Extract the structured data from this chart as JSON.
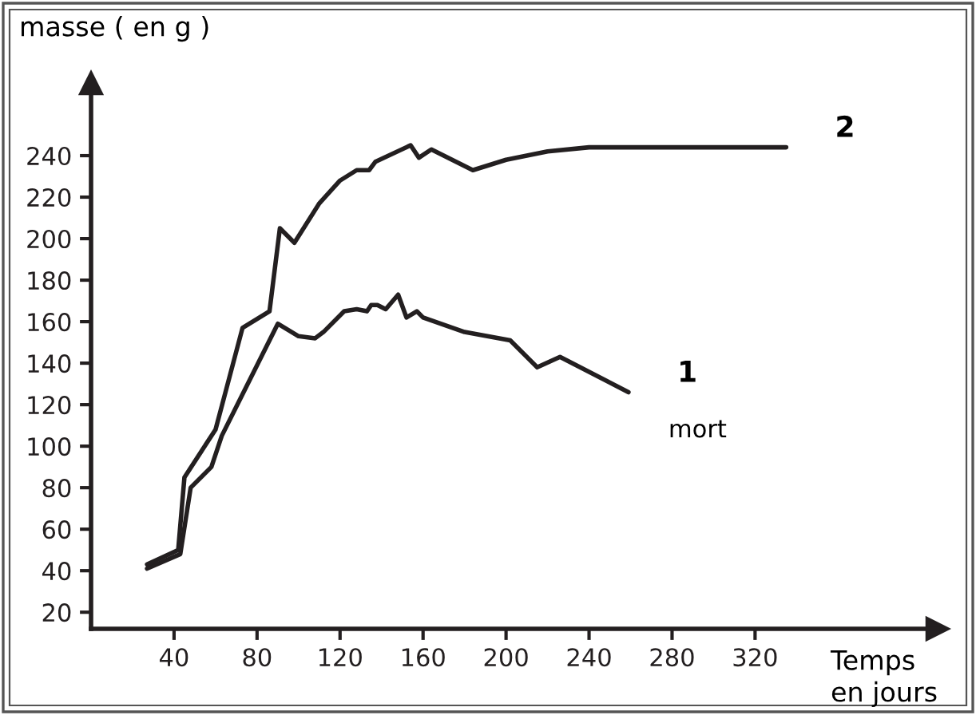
{
  "chart_data": {
    "type": "line",
    "ylabel": "masse ( en g )",
    "xlabel": "Temps\nen jours",
    "xlim": [
      0,
      408
    ],
    "ylim": [
      12,
      275
    ],
    "xticks": [
      40,
      80,
      120,
      160,
      200,
      240,
      280,
      320
    ],
    "yticks": [
      20,
      40,
      60,
      80,
      100,
      120,
      140,
      160,
      180,
      200,
      220,
      240
    ],
    "grid": false,
    "legend": false,
    "marker": "none",
    "line_style": "solid",
    "series": [
      {
        "name": "1",
        "color": "#231f20",
        "x": [
          27,
          43,
          48,
          58,
          63,
          90,
          100,
          108,
          112,
          122,
          128,
          133,
          135,
          138,
          142,
          148,
          152,
          157,
          160,
          180,
          202,
          215,
          226,
          259
        ],
        "values": [
          41,
          48,
          80,
          90,
          105,
          159,
          153,
          152,
          155,
          165,
          166,
          165,
          168,
          168,
          166,
          173,
          162,
          165,
          162,
          155,
          151,
          138,
          143,
          126
        ]
      },
      {
        "name": "2",
        "color": "#231f20",
        "x": [
          27,
          42,
          45,
          60,
          73,
          86,
          91,
          98,
          110,
          120,
          128,
          134,
          137,
          154,
          158,
          164,
          184,
          200,
          220,
          240,
          335
        ],
        "values": [
          43,
          50,
          85,
          108,
          157,
          165,
          205,
          198,
          217,
          228,
          233,
          233,
          237,
          245,
          239,
          243,
          233,
          238,
          242,
          244,
          244
        ]
      }
    ],
    "annotations": [
      {
        "text": "mort",
        "x": 259,
        "y": 126
      }
    ]
  }
}
